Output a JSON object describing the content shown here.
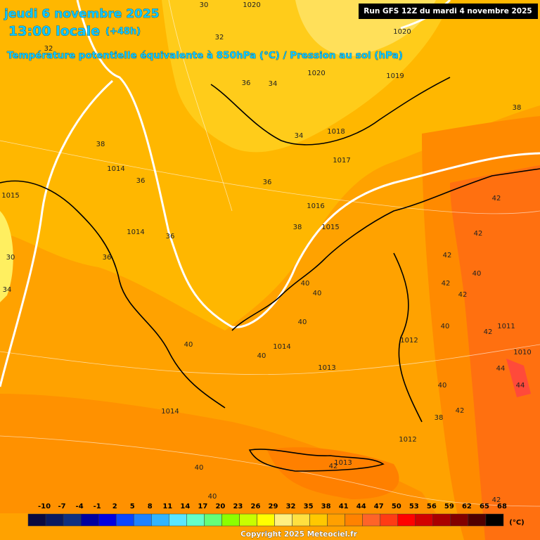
{
  "header": {
    "date": "jeudi 6 novembre 2025",
    "time": "13:00 locale",
    "lead": "(+48h)",
    "subtitle": "Température potentielle équivalente à 850hPa (°C) / Pression au sol (hPa)",
    "run": "Run GFS 12Z du mardi 4 novembre 2025"
  },
  "map_labels": [
    "30",
    "1020",
    "32",
    "1020",
    "32",
    "1020",
    "36",
    "34",
    "1019",
    "38",
    "34",
    "1018",
    "38",
    "1017",
    "1014",
    "36",
    "36",
    "1015",
    "42",
    "1016",
    "38",
    "1015",
    "1014",
    "36",
    "42",
    "36",
    "30",
    "42",
    "34",
    "40",
    "40",
    "40",
    "42",
    "42",
    "40",
    "40",
    "1011",
    "42",
    "1012",
    "40",
    "1014",
    "1010",
    "40",
    "1013",
    "44",
    "40",
    "44",
    "1014",
    "42",
    "38",
    "1012",
    "40",
    "42",
    "1013",
    "40",
    "42"
  ],
  "scale": {
    "ticks": [
      -10,
      -7,
      -4,
      -1,
      2,
      5,
      8,
      11,
      14,
      17,
      20,
      23,
      26,
      29,
      32,
      35,
      38,
      41,
      44,
      47,
      50,
      53,
      56,
      59,
      62,
      65,
      68
    ],
    "colors": [
      "#0a0a40",
      "#0a1a60",
      "#103080",
      "#0000a0",
      "#0000e0",
      "#0a46ff",
      "#1e82ff",
      "#32b4ff",
      "#5ae6ff",
      "#64ffc8",
      "#64ff78",
      "#8cff00",
      "#c8ff00",
      "#ffff00",
      "#fff080",
      "#ffe040",
      "#ffc800",
      "#ffa000",
      "#ff8200",
      "#ff6428",
      "#ff3c14",
      "#ff0000",
      "#d20000",
      "#aa0000",
      "#820000",
      "#500000",
      "#000000"
    ],
    "unit": "(°C)"
  },
  "footer": {
    "copyright": "Copyright 2025 Meteociel.fr"
  }
}
